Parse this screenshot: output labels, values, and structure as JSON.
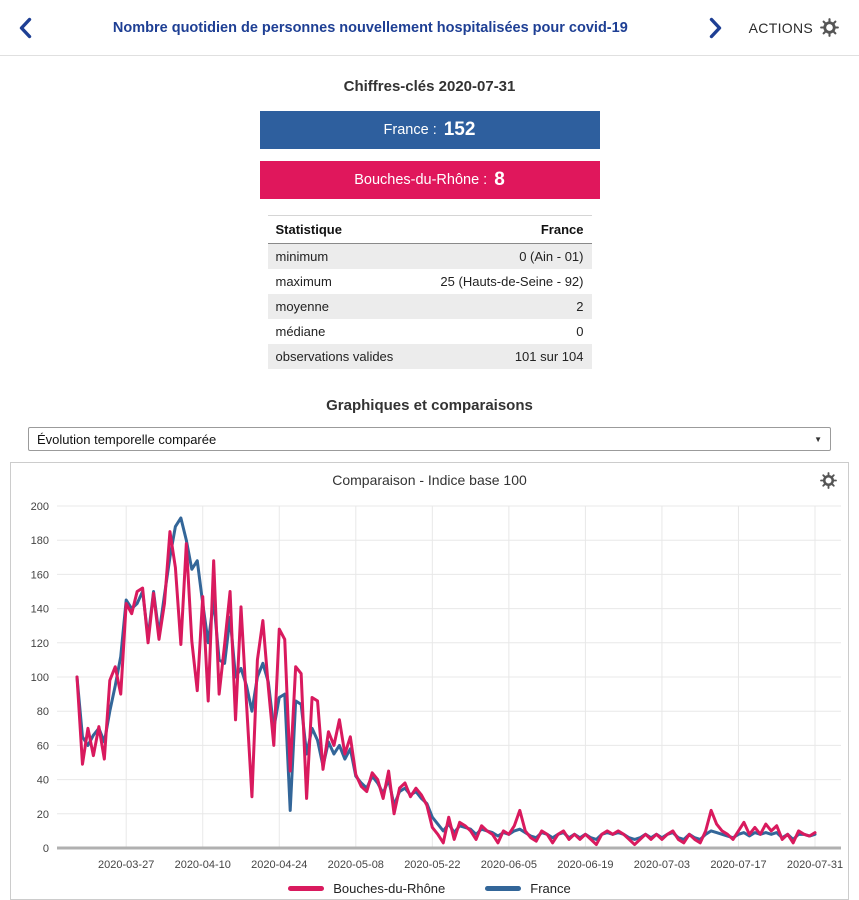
{
  "header": {
    "title": "Nombre quotidien de personnes nouvellement hospitalisées pour covid-19",
    "actions_label": "ACTIONS"
  },
  "key_figures": {
    "title": "Chiffres-clés 2020-07-31",
    "badges": [
      {
        "label": "France :",
        "value": "152",
        "color": "#2e5f9e"
      },
      {
        "label": "Bouches-du-Rhône :",
        "value": "8",
        "color": "#e0175c"
      }
    ],
    "table": {
      "columns": [
        "Statistique",
        "France"
      ],
      "rows": [
        [
          "minimum",
          "0 (Ain - 01)"
        ],
        [
          "maximum",
          "25 (Hauts-de-Seine - 92)"
        ],
        [
          "moyenne",
          "2"
        ],
        [
          "médiane",
          "0"
        ],
        [
          "observations valides",
          "101 sur 104"
        ]
      ]
    }
  },
  "comparisons": {
    "title": "Graphiques et comparaisons",
    "select_value": "Évolution temporelle comparée"
  },
  "chart_data": {
    "type": "line",
    "title": "Comparaison - Indice base 100",
    "xlabel": "",
    "ylabel": "",
    "x_start_date": "2020-03-18",
    "x_frequency": "daily",
    "x_tick_labels": [
      "2020-03-27",
      "2020-04-10",
      "2020-04-24",
      "2020-05-08",
      "2020-05-22",
      "2020-06-05",
      "2020-06-19",
      "2020-07-03",
      "2020-07-17",
      "2020-07-31"
    ],
    "x_tick_days": [
      9,
      23,
      37,
      51,
      65,
      79,
      93,
      107,
      121,
      135
    ],
    "ylim": [
      0,
      200
    ],
    "y_ticks": [
      0,
      20,
      40,
      60,
      80,
      100,
      120,
      140,
      160,
      180,
      200
    ],
    "grid": true,
    "legend_position": "bottom",
    "series": [
      {
        "name": "Bouches-du-Rhône",
        "color": "#d91a5e",
        "values": [
          100,
          49,
          70,
          54,
          71,
          52,
          98,
          106,
          90,
          143,
          137,
          150,
          152,
          120,
          149,
          122,
          143,
          185,
          164,
          119,
          178,
          121,
          92,
          147,
          86,
          168,
          90,
          119,
          150,
          75,
          141,
          85,
          30,
          110,
          133,
          94,
          60,
          128,
          122,
          45,
          106,
          102,
          29,
          88,
          86,
          46,
          68,
          60,
          75,
          55,
          65,
          43,
          36,
          33,
          44,
          40,
          29,
          45,
          20,
          35,
          38,
          30,
          35,
          31,
          25,
          12,
          8,
          3,
          18,
          5,
          15,
          13,
          10,
          5,
          13,
          10,
          8,
          3,
          10,
          8,
          13,
          22,
          10,
          6,
          4,
          10,
          8,
          3,
          8,
          10,
          5,
          8,
          5,
          8,
          5,
          2,
          8,
          10,
          8,
          10,
          8,
          5,
          2,
          5,
          8,
          5,
          8,
          5,
          8,
          10,
          5,
          3,
          8,
          5,
          3,
          10,
          22,
          14,
          10,
          8,
          5,
          10,
          15,
          8,
          12,
          8,
          14,
          10,
          13,
          5,
          8,
          3,
          10,
          8,
          7,
          9
        ]
      },
      {
        "name": "France",
        "color": "#336699",
        "values": [
          100,
          65,
          60,
          66,
          70,
          62,
          80,
          95,
          112,
          145,
          140,
          143,
          150,
          123,
          150,
          125,
          148,
          170,
          188,
          193,
          180,
          163,
          168,
          143,
          120,
          145,
          110,
          108,
          135,
          100,
          105,
          95,
          80,
          100,
          108,
          97,
          70,
          88,
          90,
          22,
          86,
          84,
          55,
          70,
          63,
          48,
          62,
          55,
          60,
          52,
          58,
          42,
          38,
          35,
          42,
          38,
          32,
          40,
          25,
          33,
          35,
          31,
          33,
          29,
          26,
          18,
          14,
          10,
          14,
          9,
          13,
          12,
          11,
          8,
          11,
          10,
          9,
          7,
          9,
          8,
          10,
          11,
          9,
          7,
          6,
          9,
          8,
          6,
          8,
          9,
          6,
          8,
          6,
          8,
          6,
          5,
          8,
          9,
          8,
          9,
          8,
          6,
          5,
          6,
          8,
          6,
          8,
          6,
          8,
          9,
          6,
          5,
          8,
          6,
          5,
          8,
          10,
          9,
          8,
          7,
          6,
          8,
          9,
          7,
          9,
          8,
          9,
          8,
          9,
          6,
          8,
          5,
          8,
          8,
          7,
          8
        ]
      }
    ]
  }
}
